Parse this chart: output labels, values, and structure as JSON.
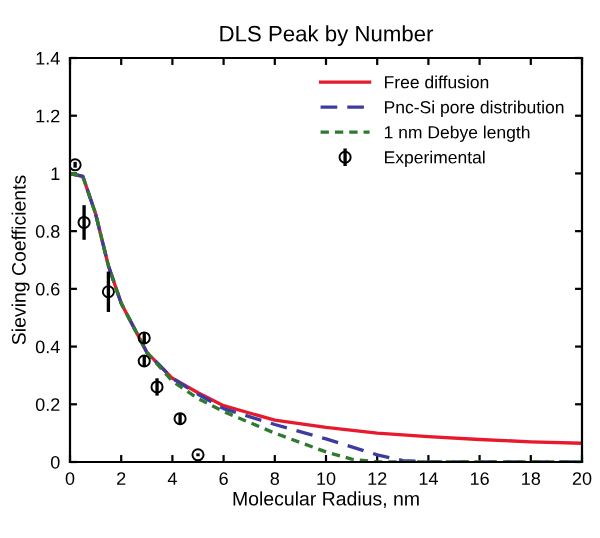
{
  "chart_data": {
    "type": "line",
    "title": "DLS Peak by Number",
    "xlabel": "Molecular Radius, nm",
    "ylabel": "Sieving Coefficients",
    "xlim": [
      0,
      20
    ],
    "ylim": [
      0,
      1.4
    ],
    "xticks": [
      0,
      2,
      4,
      6,
      8,
      10,
      12,
      14,
      16,
      18,
      20
    ],
    "yticks": [
      0,
      0.2,
      0.4,
      0.6,
      0.8,
      1,
      1.2,
      1.4
    ],
    "grid": false,
    "legend": "top right",
    "series": [
      {
        "name": "Free diffusion",
        "color": "#e8192c",
        "line_style": "solid",
        "x": [
          0,
          0.5,
          1,
          1.5,
          2,
          3,
          4,
          5,
          6,
          8,
          10,
          12,
          14,
          16,
          18,
          20
        ],
        "values": [
          1,
          0.99,
          0.86,
          0.68,
          0.55,
          0.38,
          0.29,
          0.24,
          0.195,
          0.145,
          0.12,
          0.1,
          0.088,
          0.078,
          0.07,
          0.065
        ]
      },
      {
        "name": "Pnc-Si pore distribution",
        "color": "#3c3ca0",
        "line_style": "dashed",
        "x": [
          0,
          0.5,
          1,
          1.5,
          2,
          3,
          4,
          5,
          6,
          8,
          10,
          12,
          13,
          14,
          20
        ],
        "values": [
          1,
          0.99,
          0.86,
          0.68,
          0.55,
          0.38,
          0.29,
          0.235,
          0.185,
          0.13,
          0.08,
          0.025,
          0.005,
          0,
          0
        ]
      },
      {
        "name": "1 nm Debye length",
        "color": "#2e7a2e",
        "line_style": "dotted",
        "x": [
          0,
          0.5,
          1,
          1.5,
          2,
          3,
          4,
          5,
          6,
          8,
          10,
          11,
          12,
          20
        ],
        "values": [
          1,
          0.99,
          0.86,
          0.68,
          0.55,
          0.38,
          0.28,
          0.22,
          0.175,
          0.1,
          0.035,
          0.01,
          0,
          0
        ]
      },
      {
        "name": "Experimental",
        "type": "scatter",
        "marker": "circle",
        "color": "#000000",
        "x": [
          0.2,
          0.55,
          1.5,
          2.9,
          2.9,
          3.4,
          4.3,
          5.0
        ],
        "values": [
          1.03,
          0.83,
          0.59,
          0.43,
          0.35,
          0.26,
          0.15,
          0.025
        ],
        "errors": [
          0.01,
          0.06,
          0.07,
          0.02,
          0.02,
          0.03,
          0.02,
          0.005
        ]
      }
    ]
  }
}
